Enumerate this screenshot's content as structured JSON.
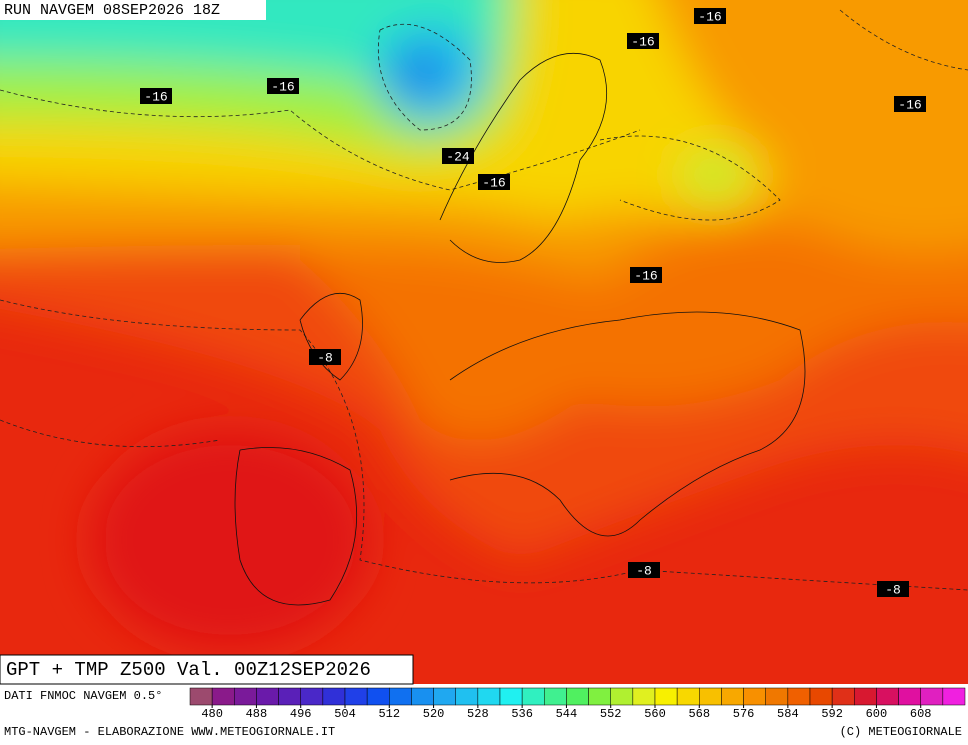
{
  "header": {
    "run": "RUN NAVGEM 08SEP2026 18Z"
  },
  "map": {
    "title": "GPT + TMP Z500 Val. 00Z12SEP2026",
    "contour_labels": [
      "-16",
      "-16",
      "-16",
      "-16",
      "-16",
      "-24",
      "-16",
      "-16",
      "-8",
      "-8",
      "-8"
    ]
  },
  "colorbar": {
    "source": "DATI FNMOC NAVGEM 0.5°",
    "ticks": [
      480,
      488,
      496,
      504,
      512,
      520,
      528,
      536,
      544,
      552,
      560,
      568,
      576,
      584,
      592,
      600,
      608
    ],
    "colors": [
      "#9c4a6e",
      "#8a1a8a",
      "#7a1a9a",
      "#6a1aaa",
      "#5a20b8",
      "#4a28c8",
      "#3030d8",
      "#2040e8",
      "#1050f0",
      "#1070f0",
      "#1890f0",
      "#20a8f0",
      "#20c0f0",
      "#20d8f0",
      "#20f0f0",
      "#30f0c0",
      "#40f090",
      "#50f060",
      "#80f040",
      "#b0f030",
      "#e0f020",
      "#f8f000",
      "#f8d800",
      "#f8c000",
      "#f8a800",
      "#f89000",
      "#f07800",
      "#f06000",
      "#e84800",
      "#e03018",
      "#d81830",
      "#d81060",
      "#e010a0",
      "#e020c0",
      "#f020e0"
    ]
  },
  "footer": {
    "credit": "MTG-NAVGEM - ELABORAZIONE WWW.METEOGIORNALE.IT",
    "copyright": "(C) METEOGIORNALE"
  }
}
